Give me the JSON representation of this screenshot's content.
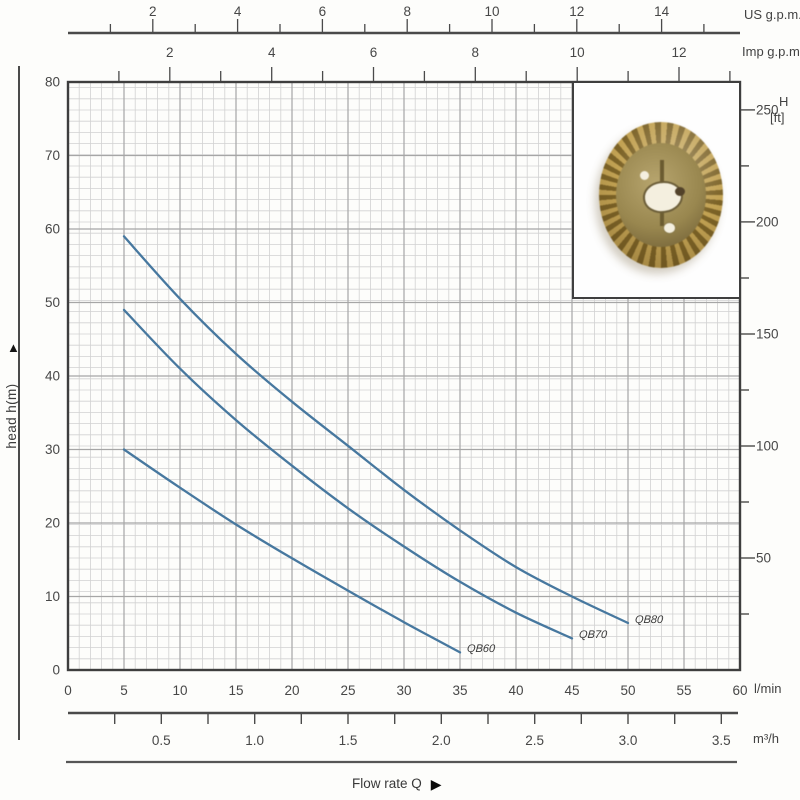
{
  "labels": {
    "us_gpm": "US g.p.m.",
    "imp_gpm": "Imp g.p.m.",
    "h": "H",
    "ft": "[ft]",
    "lmin": "l/min",
    "m3h": "m³/h",
    "head": "head h(m)",
    "flow": "Flow rate Q"
  },
  "icons": {
    "up_arrow": "▲",
    "right_arrow": "▶"
  },
  "colors": {
    "curve": "#47789f",
    "grid_minor": "#d2d2d2",
    "grid_major": "#a6a6a6",
    "plot_border": "#3e3e3e",
    "axis_line": "#4a4a4a",
    "tick_text": "#474747"
  },
  "impeller": {
    "description": "brass pump impeller photo",
    "colors": {
      "ring_light": "#c2a253",
      "ring_dark": "#7c6327",
      "disc": "#99874f",
      "disc_light": "#b7a56e",
      "hole_light": "#f4efdf",
      "hole_dark": "#52422a",
      "shadow": "rgba(110,90,50,0.30)"
    }
  },
  "chart_data": {
    "type": "line",
    "title": "",
    "xlabel": "Flow rate Q",
    "ylabel": "head h(m)",
    "grid": true,
    "legend_position": "labels-at-curve-ends",
    "xlim_lmin": [
      0,
      60
    ],
    "ylim_m": [
      0,
      80
    ],
    "x_axis_lmin": {
      "unit": "l/min",
      "tick_labels": [
        0,
        5,
        10,
        15,
        20,
        25,
        30,
        35,
        40,
        45,
        50,
        55,
        60
      ]
    },
    "x_axis_m3h": {
      "unit": "m³/h",
      "tick_labels": [
        "0.5",
        "1.0",
        "1.5",
        "2.0",
        "2.5",
        "3.0",
        "3.5"
      ],
      "minor_step": 0.25,
      "max_tick": 3.5,
      "lmin_per_unit": 16.6667
    },
    "x_axis_us_gpm": {
      "unit": "US g.p.m.",
      "tick_labels": [
        2,
        4,
        6,
        8,
        10,
        12,
        14
      ],
      "minor_step": 1,
      "max_tick": 15,
      "lmin_per_unit": 3.78541
    },
    "x_axis_imp_gpm": {
      "unit": "Imp g.p.m.",
      "tick_labels": [
        2,
        4,
        6,
        8,
        10,
        12
      ],
      "minor_step": 1,
      "max_tick": 13,
      "lmin_per_unit": 4.54609
    },
    "y_axis_m": {
      "unit": "head h(m)",
      "tick_labels": [
        0,
        10,
        20,
        30,
        40,
        50,
        60,
        70,
        80
      ]
    },
    "y_axis_ft": {
      "unit_top": "H",
      "unit_bottom": "[ft]",
      "tick_labels": [
        50,
        100,
        150,
        200,
        250
      ],
      "minor_step": 25,
      "max_tick": 250,
      "m_per_unit": 0.3048
    },
    "series": [
      {
        "name": "QB60",
        "points_lmin_m": [
          [
            5,
            30
          ],
          [
            10,
            24.8
          ],
          [
            15,
            19.8
          ],
          [
            20,
            15.2
          ],
          [
            25,
            10.8
          ],
          [
            30,
            6.5
          ],
          [
            35,
            2.4
          ]
        ]
      },
      {
        "name": "QB70",
        "points_lmin_m": [
          [
            5,
            49
          ],
          [
            10,
            41
          ],
          [
            15,
            34
          ],
          [
            20,
            27.8
          ],
          [
            25,
            22
          ],
          [
            30,
            16.8
          ],
          [
            35,
            12
          ],
          [
            40,
            7.8
          ],
          [
            45,
            4.3
          ]
        ]
      },
      {
        "name": "QB80",
        "points_lmin_m": [
          [
            5,
            59
          ],
          [
            10,
            50.5
          ],
          [
            15,
            43
          ],
          [
            20,
            36.5
          ],
          [
            25,
            30.5
          ],
          [
            30,
            24.5
          ],
          [
            35,
            19
          ],
          [
            40,
            14
          ],
          [
            45,
            10
          ],
          [
            50,
            6.4
          ]
        ]
      }
    ]
  }
}
